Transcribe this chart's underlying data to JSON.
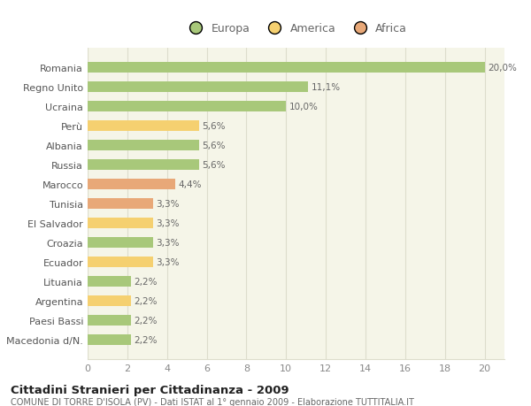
{
  "categories": [
    "Macedonia d/N.",
    "Paesi Bassi",
    "Argentina",
    "Lituania",
    "Ecuador",
    "Croazia",
    "El Salvador",
    "Tunisia",
    "Marocco",
    "Russia",
    "Albania",
    "Perù",
    "Ucraina",
    "Regno Unito",
    "Romania"
  ],
  "values": [
    2.2,
    2.2,
    2.2,
    2.2,
    3.3,
    3.3,
    3.3,
    3.3,
    4.4,
    5.6,
    5.6,
    5.6,
    10.0,
    11.1,
    20.0
  ],
  "labels": [
    "2,2%",
    "2,2%",
    "2,2%",
    "2,2%",
    "3,3%",
    "3,3%",
    "3,3%",
    "3,3%",
    "4,4%",
    "5,6%",
    "5,6%",
    "5,6%",
    "10,0%",
    "11,1%",
    "20,0%"
  ],
  "continent": [
    "Europa",
    "Europa",
    "America",
    "Europa",
    "America",
    "Europa",
    "America",
    "Africa",
    "Africa",
    "Europa",
    "Europa",
    "America",
    "Europa",
    "Europa",
    "Europa"
  ],
  "colors": {
    "Europa": "#a8c87a",
    "America": "#f5d070",
    "Africa": "#e8a878"
  },
  "legend": [
    "Europa",
    "America",
    "Africa"
  ],
  "legend_colors": [
    "#a8c87a",
    "#f5d070",
    "#e8a878"
  ],
  "title_main": "Cittadini Stranieri per Cittadinanza - 2009",
  "title_sub": "COMUNE DI TORRE D'ISOLA (PV) - Dati ISTAT al 1° gennaio 2009 - Elaborazione TUTTITALIA.IT",
  "xlim": [
    0,
    21
  ],
  "xticks": [
    0,
    2,
    4,
    6,
    8,
    10,
    12,
    14,
    16,
    18,
    20
  ],
  "bg_color": "#ffffff",
  "plot_bg_color": "#f5f5e8",
  "grid_color": "#ddddcc"
}
